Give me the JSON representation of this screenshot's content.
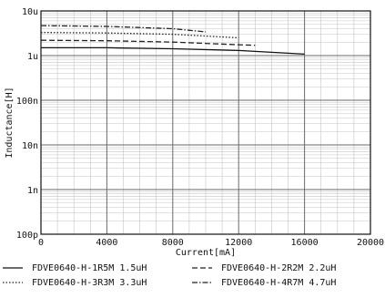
{
  "chart_data": {
    "type": "line",
    "xlabel": "Current[mA]",
    "ylabel": "Inductance[H]",
    "xlim": [
      0,
      20000
    ],
    "ylim": [
      1e-10,
      1e-05
    ],
    "yscale": "log",
    "grid": true,
    "x_ticks": [
      0,
      4000,
      8000,
      12000,
      16000,
      20000
    ],
    "x_tick_labels": [
      "0",
      "4000",
      "8000",
      "12000",
      "16000",
      "20000"
    ],
    "y_ticks": [
      1e-10,
      1e-09,
      1e-08,
      1e-07,
      1e-06,
      1e-05
    ],
    "y_tick_labels": [
      "100p",
      "1n",
      "10n",
      "100n",
      "1u",
      "10u"
    ],
    "legend_position": "bottom",
    "series": [
      {
        "name": "FDVE0640-H-1R5M 1.5uH",
        "style": "solid",
        "x": [
          0,
          4000,
          8000,
          12000,
          16000
        ],
        "y": [
          1.5e-06,
          1.5e-06,
          1.42e-06,
          1.3e-06,
          1.08e-06
        ]
      },
      {
        "name": "FDVE0640-H-2R2M 2.2uH",
        "style": "dashed",
        "x": [
          0,
          4000,
          8000,
          12000,
          13000
        ],
        "y": [
          2.2e-06,
          2.15e-06,
          2e-06,
          1.75e-06,
          1.7e-06
        ]
      },
      {
        "name": "FDVE0640-H-3R3M 3.3uH",
        "style": "dotted",
        "x": [
          0,
          4000,
          8000,
          12000
        ],
        "y": [
          3.3e-06,
          3.2e-06,
          3e-06,
          2.5e-06
        ]
      },
      {
        "name": "FDVE0640-H-4R7M 4.7uH",
        "style": "dashdot",
        "x": [
          0,
          2000,
          4000,
          8000,
          10000
        ],
        "y": [
          4.7e-06,
          4.6e-06,
          4.5e-06,
          4e-06,
          3.4e-06
        ]
      }
    ]
  }
}
